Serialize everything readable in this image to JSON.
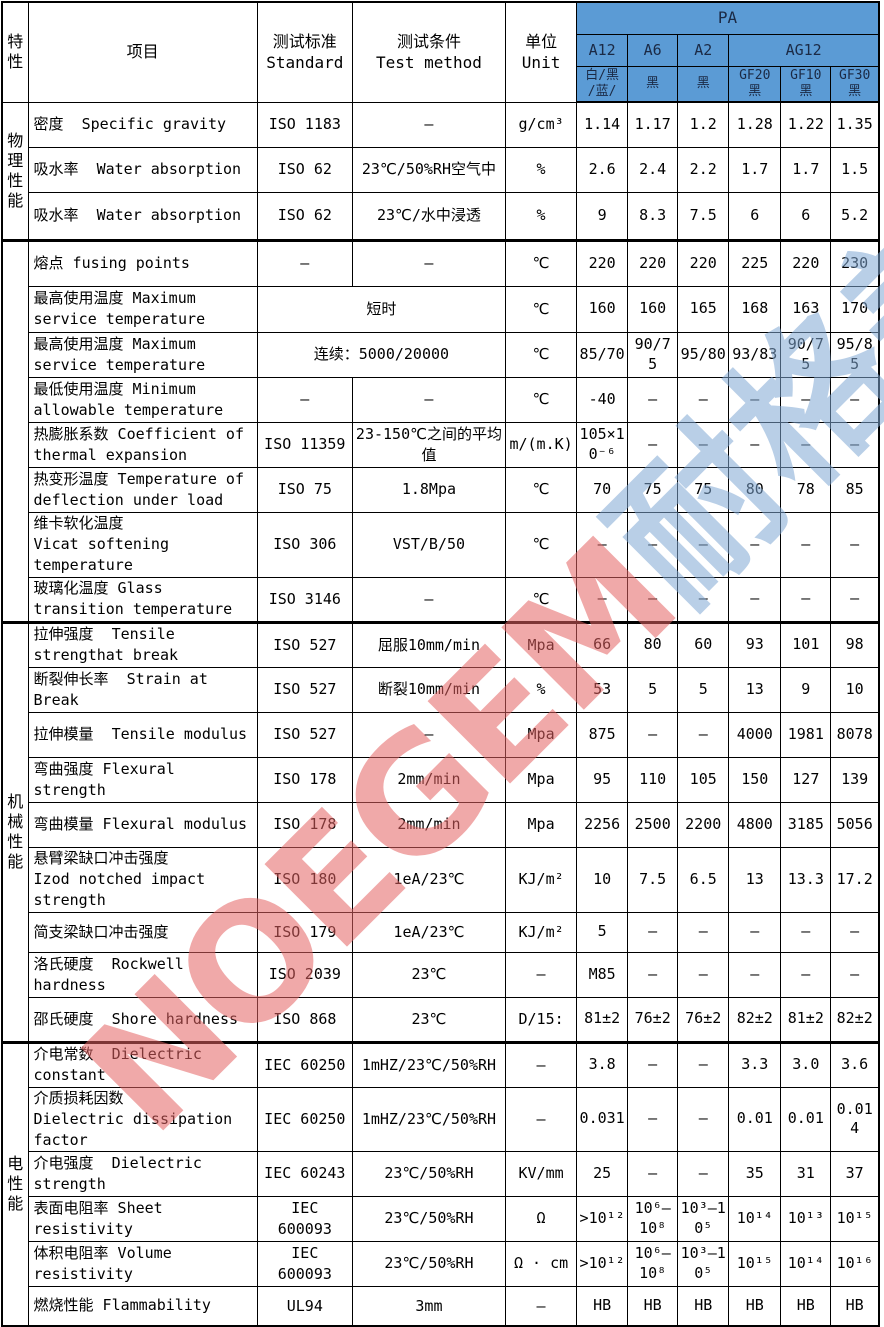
{
  "colors": {
    "header_bg": "#5b9bd5",
    "header_text": "#1b2a45",
    "border": "#000000",
    "background": "#ffffff",
    "watermark_red": "#e46262",
    "watermark_blue": "#80a8d4"
  },
  "header": {
    "feature": "特性",
    "item": "项目",
    "standard": "测试标准\nStandard",
    "method": "测试条件\nTest method",
    "unit": "单位\nUnit",
    "group": "PA",
    "models": [
      "A12",
      "A6",
      "A2",
      "AG12"
    ],
    "variants": [
      "白/黑\n/蓝/",
      "黑",
      "黑",
      "GF20\n黑",
      "GF10\n黑",
      "GF30\n黑"
    ]
  },
  "sections": [
    {
      "label": "物理性能",
      "rows": 3
    },
    {
      "label": "",
      "rows": 8
    },
    {
      "label": "机械性能",
      "rows": 9
    },
    {
      "label": "电性能",
      "rows": 6
    }
  ],
  "rows": [
    {
      "item": "密度  Specific gravity",
      "std": "ISO 1183",
      "cond": "–",
      "unit": "g/cm³",
      "values": [
        "1.14",
        "1.17",
        "1.2",
        "1.28",
        "1.22",
        "1.35"
      ],
      "h": 45
    },
    {
      "item": "吸水率  Water absorption",
      "std": "ISO 62",
      "cond": "23℃/50%RH空气中",
      "unit": "%",
      "values": [
        "2.6",
        "2.4",
        "2.2",
        "1.7",
        "1.7",
        "1.5"
      ],
      "h": 45
    },
    {
      "item": "吸水率  Water absorption",
      "std": "ISO 62",
      "cond": "23℃/水中浸透",
      "unit": "%",
      "values": [
        "9",
        "8.3",
        "7.5",
        "6",
        "6",
        "5.2"
      ],
      "h": 48
    },
    {
      "item": "熔点 fusing points",
      "std": "–",
      "cond": "–",
      "unit": "℃",
      "values": [
        "220",
        "220",
        "220",
        "225",
        "220",
        "230"
      ],
      "h": 46
    },
    {
      "item": "最高使用温度 Maximum service temperature",
      "merged": "短时",
      "unit": "℃",
      "values": [
        "160",
        "160",
        "165",
        "168",
        "163",
        "170"
      ],
      "h": 46
    },
    {
      "item": "最高使用温度 Maximum service temperature",
      "merged": "连续：5000/20000",
      "unit": "℃",
      "values": [
        "85/70",
        "90/75",
        "95/80",
        "93/83",
        "90/75",
        "95/85"
      ],
      "h": 45
    },
    {
      "item": "最低使用温度 Minimum allowable temperature",
      "std": "–",
      "cond": "–",
      "unit": "℃",
      "values": [
        "-40",
        "–",
        "–",
        "–",
        "–",
        "–"
      ],
      "h": 45
    },
    {
      "item": "热膨胀系数 Coefficient of thermal expansion",
      "std": "ISO 11359",
      "cond": "23-150℃之间的平均值",
      "unit": "m/(m.K)",
      "values": [
        "105×10⁻⁶",
        "–",
        "–",
        "–",
        "–",
        "–"
      ],
      "h": 45
    },
    {
      "item": "热变形温度 Temperature of deflection under load",
      "std": "ISO 75",
      "cond": "1.8Mpa",
      "unit": "℃",
      "values": [
        "70",
        "75",
        "75",
        "80",
        "78",
        "85"
      ],
      "h": 45
    },
    {
      "item": "维卡软化温度\nVicat softening\ntemperature",
      "std": "ISO 306",
      "cond": "VST/B/50",
      "unit": "℃",
      "values": [
        "–",
        "–",
        "–",
        "–",
        "–",
        "–"
      ],
      "h": 65
    },
    {
      "item": "玻璃化温度 Glass transition temperature",
      "std": "ISO 3146",
      "cond": "–",
      "unit": "℃",
      "values": [
        "–",
        "–",
        "–",
        "–",
        "–",
        "–"
      ],
      "h": 45
    },
    {
      "item": "拉伸强度  Tensile strengthat break",
      "std": "ISO 527",
      "cond": "屈服10mm/min",
      "unit": "Mpa",
      "values": [
        "66",
        "80",
        "60",
        "93",
        "101",
        "98"
      ],
      "h": 45
    },
    {
      "item": "断裂伸长率  Strain at Break",
      "std": "ISO 527",
      "cond": "断裂10mm/min",
      "unit": "%",
      "values": [
        "53",
        "5",
        "5",
        "13",
        "9",
        "10"
      ],
      "h": 45
    },
    {
      "item": "拉伸模量  Tensile modulus",
      "std": "ISO 527",
      "cond": "–",
      "unit": "Mpa",
      "values": [
        "875",
        "–",
        "–",
        "4000",
        "1981",
        "8078"
      ],
      "h": 45
    },
    {
      "item": "弯曲强度 Flexural strength",
      "std": "ISO 178",
      "cond": "2mm/min",
      "unit": "Mpa",
      "values": [
        "95",
        "110",
        "105",
        "150",
        "127",
        "139"
      ],
      "h": 45
    },
    {
      "item": "弯曲模量 Flexural modulus",
      "std": "ISO 178",
      "cond": "2mm/min",
      "unit": "Mpa",
      "values": [
        "2256",
        "2500",
        "2200",
        "4800",
        "3185",
        "5056"
      ],
      "h": 45
    },
    {
      "item": "悬臂梁缺口冲击强度\nIzod notched impact\nstrength",
      "std": "ISO 180",
      "cond": "1eA/23℃",
      "unit": "KJ/m²",
      "values": [
        "10",
        "7.5",
        "6.5",
        "13",
        "13.3",
        "17.2"
      ],
      "h": 65
    },
    {
      "item": "简支梁缺口冲击强度",
      "std": "ISO 179",
      "cond": "1eA/23℃",
      "unit": "KJ/m²",
      "values": [
        "5",
        "–",
        "–",
        "–",
        "–",
        "–"
      ],
      "h": 40
    },
    {
      "item": "洛氏硬度  Rockwell hardness",
      "std": "ISO 2039",
      "cond": "23℃",
      "unit": "–",
      "values": [
        "M85",
        "–",
        "–",
        "–",
        "–",
        "–"
      ],
      "h": 45
    },
    {
      "item": "邵氏硬度  Shore hardness",
      "std": "ISO 868",
      "cond": "23℃",
      "unit": "D/15:",
      "values": [
        "81±2",
        "76±2",
        "76±2",
        "82±2",
        "81±2",
        "82±2"
      ],
      "h": 45
    },
    {
      "item": "介电常数  Dielectric constant",
      "std": "IEC 60250",
      "cond": "1mHZ/23℃/50%RH",
      "unit": "–",
      "values": [
        "3.8",
        "–",
        "–",
        "3.3",
        "3.0",
        "3.6"
      ],
      "h": 45
    },
    {
      "item": "介质损耗因数\nDielectric dissipation\nfactor",
      "std": "IEC 60250",
      "cond": "1mHZ/23℃/50%RH",
      "unit": "–",
      "values": [
        "0.031",
        "–",
        "–",
        "0.01",
        "0.01",
        "0.014"
      ],
      "h": 60
    },
    {
      "item": "介电强度  Dielectric strength",
      "std": "IEC 60243",
      "cond": "23℃/50%RH",
      "unit": "KV/mm",
      "values": [
        "25",
        "–",
        "–",
        "35",
        "31",
        "37"
      ],
      "h": 45
    },
    {
      "item": "表面电阻率 Sheet resistivity",
      "std": "IEC\n600093",
      "cond": "23℃/50%RH",
      "unit": "Ω",
      "values": [
        ">10¹²",
        "10⁶–10⁸",
        "10³–10⁵",
        "10¹⁴",
        "10¹³",
        "10¹⁵"
      ],
      "h": 45
    },
    {
      "item": "体积电阻率 Volume resistivity",
      "std": "IEC\n600093",
      "cond": "23℃/50%RH",
      "unit": "Ω · cm",
      "values": [
        ">10¹²",
        "10⁶–10⁸",
        "10³–10⁵",
        "10¹⁵",
        "10¹⁴",
        "10¹⁶"
      ],
      "h": 45
    },
    {
      "item": "燃烧性能 Flammability",
      "std": "UL94",
      "cond": "3mm",
      "unit": "–",
      "values": [
        "HB",
        "HB",
        "HB",
        "HB",
        "HB",
        "HB"
      ],
      "h": 40
    }
  ],
  "watermark": {
    "latin": "NOEGEM",
    "cjk": "耐格美",
    "registered": "R"
  }
}
